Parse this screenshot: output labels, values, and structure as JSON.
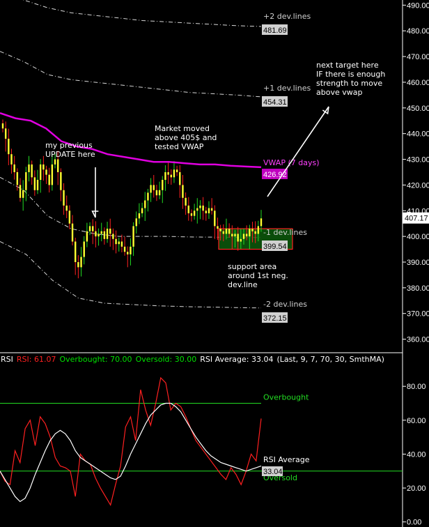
{
  "chart_data": [
    {
      "type": "candlestick",
      "ylim": [
        355,
        492
      ],
      "yticks": [
        360,
        370,
        380,
        390,
        400,
        410,
        420,
        430,
        440,
        450,
        460,
        470,
        480,
        490
      ],
      "ytick_labels": [
        "360.00",
        "370.00",
        "380.00",
        "390.00",
        "400.00",
        "410.00",
        "420.00",
        "430.00",
        "440.00",
        "450.00",
        "460.00",
        "470.00",
        "480.00",
        "490.00"
      ],
      "last_price": "407.17",
      "close": [
        442,
        438,
        432,
        428,
        425,
        420,
        415,
        418,
        425,
        428,
        423,
        418,
        422,
        428,
        426,
        424,
        420,
        428,
        430,
        425,
        418,
        412,
        410,
        405,
        398,
        390,
        388,
        392,
        398,
        402,
        404,
        402,
        400,
        401,
        402,
        399,
        403,
        401,
        399,
        397,
        398,
        396,
        394,
        393,
        396,
        404,
        407,
        409,
        411,
        414,
        417,
        420,
        418,
        416,
        418,
        422,
        425,
        424,
        423,
        426,
        425,
        420,
        415,
        412,
        409,
        408,
        410,
        411,
        412,
        410,
        409,
        411,
        410,
        404,
        403,
        402,
        401,
        403,
        401,
        400,
        401,
        398,
        399,
        401,
        400,
        403,
        402,
        401,
        404,
        407
      ],
      "vwap": {
        "values": [
          448,
          446,
          445,
          442,
          437,
          435,
          434,
          432,
          431,
          430,
          429,
          429,
          428.5,
          428,
          428,
          427.5,
          427.2,
          426.92
        ],
        "label": "VWAP (7 days)",
        "value": "426.92",
        "color": "#e000e0"
      },
      "bands": [
        {
          "label": "+2 dev.lines",
          "value": "481.69",
          "values": [
            495,
            492,
            489,
            487,
            486,
            485,
            484,
            483.5,
            483,
            482.5,
            482,
            481.69
          ]
        },
        {
          "label": "+1 dev.lines",
          "value": "454.31",
          "values": [
            472,
            468,
            463,
            461,
            460,
            459,
            458,
            457,
            456,
            455.5,
            455,
            454.31
          ]
        },
        {
          "label": "-1 dev.lines",
          "value": "399.54",
          "values": [
            423,
            418,
            408,
            403,
            401,
            400,
            400,
            400,
            399.8,
            399.7,
            399.6,
            399.54
          ]
        },
        {
          "label": "-2 dev.lines",
          "value": "372.15",
          "values": [
            398,
            393,
            383,
            376,
            374,
            373.5,
            373,
            372.7,
            372.5,
            372.3,
            372.15
          ]
        }
      ],
      "support_zone": [
        395,
        403
      ],
      "annotations": [
        {
          "text": [
            "my previous",
            "UPDATE here"
          ]
        },
        {
          "text": [
            "Market moved",
            "above 405$ and",
            "tested VWAP"
          ]
        },
        {
          "text": [
            "next target here",
            "IF there is enough",
            "strength to move",
            "above vwap"
          ]
        },
        {
          "text": [
            "support area",
            "around 1st neg.",
            "dev.line"
          ]
        }
      ]
    },
    {
      "type": "line",
      "ylim": [
        -3,
        92
      ],
      "yticks": [
        0,
        20,
        40,
        60,
        80
      ],
      "ytick_labels": [
        "0.00",
        "20.00",
        "40.00",
        "60.00",
        "80.00"
      ],
      "header": [
        {
          "text": "RSI",
          "color": "#ffffff"
        },
        {
          "text": "RSI: 61.07",
          "color": "#ff2020"
        },
        {
          "text": "Overbought: 70.00",
          "color": "#00e000"
        },
        {
          "text": "Oversold: 30.00",
          "color": "#00e000"
        },
        {
          "text": "RSI Average: 33.04",
          "color": "#ffffff"
        },
        {
          "text": "(Last, 9, 7, 70, 30, SmthMA)",
          "color": "#ffffff"
        }
      ],
      "overbought": {
        "value": 70,
        "label": "Overbought"
      },
      "oversold": {
        "value": 30,
        "label": "Oversold"
      },
      "rsi_average_label": "RSI Average",
      "rsi_average_value": "33.04",
      "series": [
        {
          "name": "RSI",
          "color": "#ff2020",
          "values": [
            30,
            24,
            22,
            42,
            35,
            55,
            60,
            45,
            62,
            58,
            50,
            38,
            33,
            32,
            30,
            15,
            40,
            36,
            34,
            26,
            20,
            15,
            10,
            22,
            33,
            56,
            62,
            48,
            78,
            66,
            57,
            70,
            85,
            82,
            66,
            70,
            68,
            62,
            55,
            48,
            44,
            40,
            36,
            32,
            28,
            25,
            32,
            28,
            22,
            30,
            40,
            36,
            61
          ]
        },
        {
          "name": "RSI Average",
          "color": "#ffffff",
          "values": [
            30,
            25,
            20,
            15,
            12,
            14,
            20,
            28,
            35,
            42,
            48,
            52,
            54,
            52,
            48,
            42,
            38,
            36,
            34,
            32,
            30,
            28,
            26,
            25,
            27,
            33,
            40,
            46,
            52,
            58,
            63,
            66,
            69,
            70,
            70,
            68,
            65,
            60,
            55,
            50,
            46,
            42,
            39,
            37,
            35,
            34,
            33,
            32,
            31,
            30,
            31,
            32,
            33.04
          ]
        }
      ]
    }
  ]
}
